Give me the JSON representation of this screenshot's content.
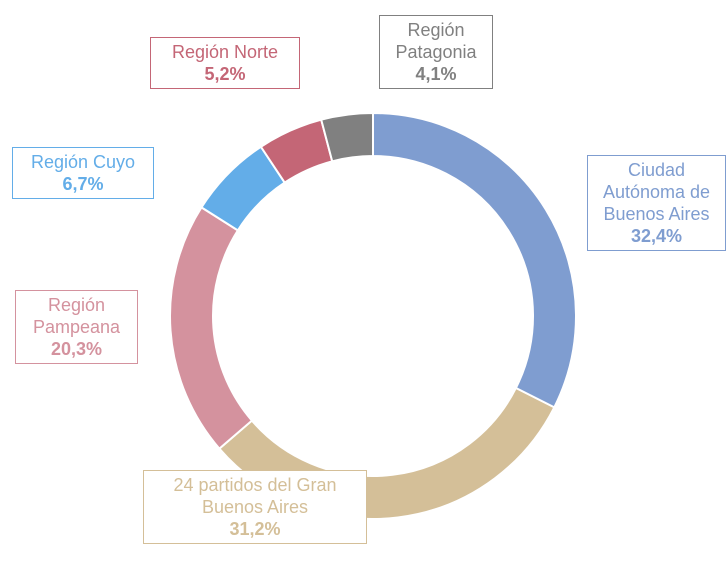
{
  "chart_data": {
    "type": "donut",
    "categories": [
      "Ciudad Autónoma de Buenos Aires",
      "24 partidos del Gran Buenos Aires",
      "Región Pampeana",
      "Región Cuyo",
      "Región Norte",
      "Región Patagonia"
    ],
    "values": [
      32.4,
      31.2,
      20.3,
      6.7,
      5.2,
      4.1
    ],
    "value_labels": [
      "32,4%",
      "31,2%",
      "20,3%",
      "6,7%",
      "5,2%",
      "4,1%"
    ],
    "colors": [
      "#7f9dd0",
      "#d4bf98",
      "#d4929e",
      "#63ade8",
      "#c46676",
      "#808080"
    ]
  }
}
